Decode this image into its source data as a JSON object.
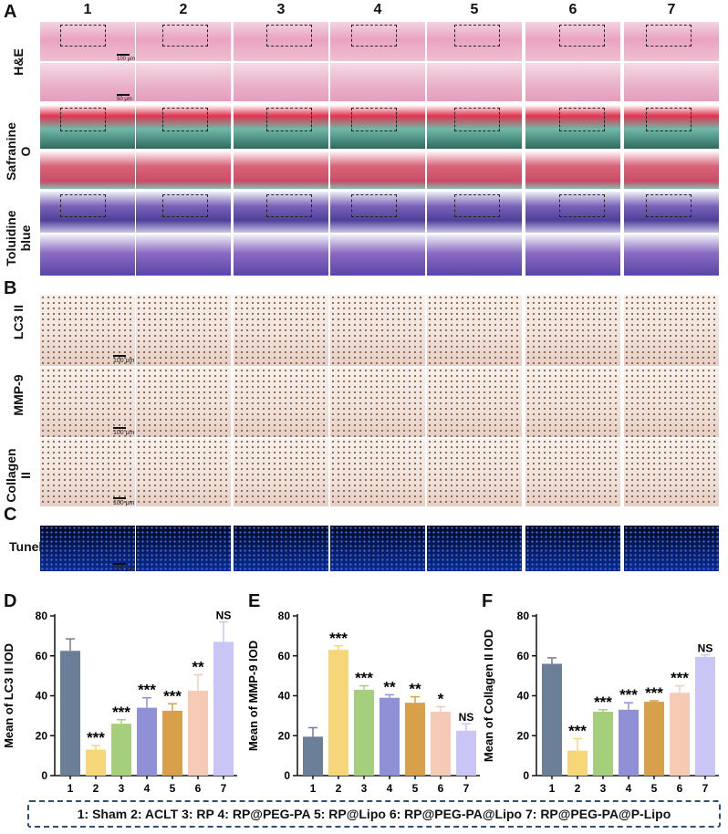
{
  "panels": {
    "A": "A",
    "B": "B",
    "C": "C",
    "D": "D",
    "E": "E",
    "F": "F"
  },
  "columns": [
    "1",
    "2",
    "3",
    "4",
    "5",
    "6",
    "7"
  ],
  "rows_a": [
    "H&E",
    "Safranine O",
    "Toluidine blue"
  ],
  "rows_b": [
    "LC3 II",
    "MMP-9",
    "Collagen II"
  ],
  "rows_c": [
    "Tunel"
  ],
  "scale_a": [
    "100 μm",
    "50 μm"
  ],
  "scale_bc": "100 μm",
  "tile_colors": {
    "he_top": "#e9a3c0",
    "he_bottom": "#eab0c8",
    "saf_top": "#6fb8a8",
    "saf_bottom": "#d9657a",
    "saf_red": "#e0354f",
    "tol_top": "#7b63b8",
    "tol_bottom": "#8a6bc2",
    "ihc": "#efe2dc",
    "ihc_dot": "#8c5a34",
    "tunel": "#0a1e66"
  },
  "legend": "1: Sham 2: ACLT 3: RP 4: RP@PEG-PA 5: RP@Lipo 6: RP@PEG-PA@Lipo 7: RP@PEG-PA@P-Lipo",
  "chart_data": [
    {
      "type": "bar",
      "panel": "D",
      "categories": [
        "1",
        "2",
        "3",
        "4",
        "5",
        "6",
        "7"
      ],
      "values": [
        62.5,
        13,
        26,
        34,
        32.5,
        42.5,
        67
      ],
      "errors": [
        6,
        2,
        2,
        5,
        3.5,
        8,
        10
      ],
      "significance": [
        "",
        "***",
        "***",
        "***",
        "***",
        "**",
        "NS"
      ],
      "ylabel": "Mean of LC3 II IOD",
      "ylim": [
        0,
        80
      ],
      "yticks": [
        "0",
        "20",
        "40",
        "60",
        "80"
      ],
      "colors": [
        "#6b7f99",
        "#f5d77a",
        "#a6cf7d",
        "#8f90d6",
        "#d9a04c",
        "#f6cbb5",
        "#c9c6f5"
      ]
    },
    {
      "type": "bar",
      "panel": "E",
      "categories": [
        "1",
        "2",
        "3",
        "4",
        "5",
        "6",
        "7"
      ],
      "values": [
        19.5,
        63,
        43,
        39,
        36.5,
        32,
        22.5
      ],
      "errors": [
        4.5,
        2,
        2,
        1.5,
        3,
        2.5,
        3.5
      ],
      "significance": [
        "",
        "***",
        "***",
        "**",
        "**",
        "*",
        "NS"
      ],
      "ylabel": "Mean of MMP-9 IOD",
      "ylim": [
        0,
        80
      ],
      "yticks": [
        "0",
        "20",
        "40",
        "60",
        "80"
      ],
      "colors": [
        "#6b7f99",
        "#f5d77a",
        "#a6cf7d",
        "#8f90d6",
        "#d9a04c",
        "#f6cbb5",
        "#c9c6f5"
      ]
    },
    {
      "type": "bar",
      "panel": "F",
      "categories": [
        "1",
        "2",
        "3",
        "4",
        "5",
        "6",
        "7"
      ],
      "values": [
        56,
        12.5,
        32,
        33,
        37,
        41.5,
        59.5
      ],
      "errors": [
        3,
        6,
        1,
        3.5,
        0.5,
        3.5,
        1
      ],
      "significance": [
        "",
        "***",
        "***",
        "***",
        "***",
        "***",
        "NS"
      ],
      "ylabel": "Mean of Collagen II IOD",
      "ylim": [
        0,
        80
      ],
      "yticks": [
        "0",
        "20",
        "40",
        "60",
        "80"
      ],
      "colors": [
        "#6b7f99",
        "#f5d77a",
        "#a6cf7d",
        "#8f90d6",
        "#d9a04c",
        "#f6cbb5",
        "#c9c6f5"
      ]
    }
  ]
}
